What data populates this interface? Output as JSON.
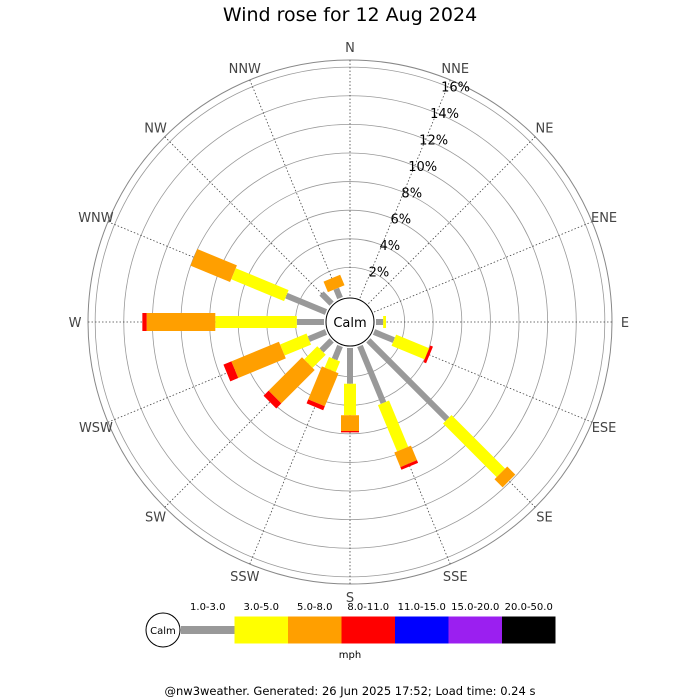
{
  "chart_data": {
    "type": "wind-rose",
    "title": "Wind rose for 12 Aug 2024",
    "directions": [
      "N",
      "NNE",
      "NE",
      "ENE",
      "E",
      "ESE",
      "SE",
      "SSE",
      "S",
      "SSW",
      "SW",
      "WSW",
      "W",
      "WNW",
      "NW",
      "NNW"
    ],
    "radial_ticks": [
      2,
      4,
      6,
      8,
      10,
      12,
      14,
      16
    ],
    "radial_tick_labels": [
      "2%",
      "4%",
      "6%",
      "8%",
      "10%",
      "12%",
      "14%",
      "16%"
    ],
    "radial_max": 16.5,
    "calm_label": "Calm",
    "speed_unit": "mph",
    "speed_bins": [
      {
        "label": "1.0-3.0",
        "color": "#999999"
      },
      {
        "label": "3.0-5.0",
        "color": "#ffff00"
      },
      {
        "label": "5.0-8.0",
        "color": "#ff9f00"
      },
      {
        "label": "8.0-11.0",
        "color": "#ff0000"
      },
      {
        "label": "11.0-15.0",
        "color": "#0000ff"
      },
      {
        "label": "15.0-20.0",
        "color": "#9b1ff0"
      },
      {
        "label": "20.0-50.0",
        "color": "#000000"
      }
    ],
    "series": [
      {
        "name": "1.0-3.0",
        "values": [
          0,
          0,
          0,
          0,
          0.5,
          1.5,
          7.8,
          4.3,
          2.5,
          1.0,
          1.0,
          1.3,
          1.9,
          3.0,
          1.0,
          0.7
        ]
      },
      {
        "name": "3.0-5.0",
        "values": [
          0,
          0,
          0,
          0,
          0.2,
          2.5,
          5.3,
          3.5,
          2.2,
          0.8,
          1.3,
          2.0,
          5.7,
          4.0,
          0,
          0
        ]
      },
      {
        "name": "5.0-8.0",
        "values": [
          0,
          0,
          0,
          0,
          0,
          0,
          0.8,
          1.1,
          1.1,
          2.5,
          3.3,
          3.6,
          4.8,
          3.0,
          0,
          0.8
        ]
      },
      {
        "name": "8.0-11.0",
        "values": [
          0,
          0,
          0,
          0,
          0,
          0.2,
          0,
          0.2,
          0.1,
          0.3,
          0.5,
          0.6,
          0.3,
          0,
          0,
          0
        ]
      },
      {
        "name": "11.0-15.0",
        "values": [
          0,
          0,
          0,
          0,
          0,
          0,
          0,
          0,
          0,
          0,
          0,
          0,
          0,
          0,
          0,
          0
        ]
      },
      {
        "name": "15.0-20.0",
        "values": [
          0,
          0,
          0,
          0,
          0,
          0,
          0,
          0,
          0,
          0,
          0,
          0,
          0,
          0,
          0,
          0
        ]
      },
      {
        "name": "20.0-50.0",
        "values": [
          0,
          0,
          0,
          0,
          0,
          0,
          0,
          0,
          0,
          0,
          0,
          0,
          0,
          0,
          0,
          0
        ]
      }
    ]
  },
  "footer": "@nw3weather. Generated: 26 Jun 2025 17:52; Load time: 0.24 s"
}
